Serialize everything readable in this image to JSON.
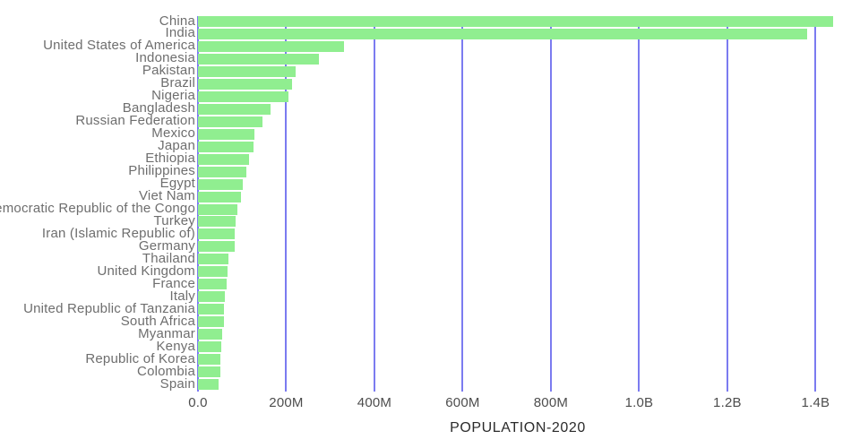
{
  "chart_data": {
    "type": "bar",
    "orientation": "horizontal",
    "title": "POPULATION-2020",
    "categories": [
      "China",
      "India",
      "United States of America",
      "Indonesia",
      "Pakistan",
      "Brazil",
      "Nigeria",
      "Bangladesh",
      "Russian Federation",
      "Mexico",
      "Japan",
      "Ethiopia",
      "Philippines",
      "Egypt",
      "Viet Nam",
      "Democratic Republic of the Congo",
      "Turkey",
      "Iran (Islamic Republic of)",
      "Germany",
      "Thailand",
      "United Kingdom",
      "France",
      "Italy",
      "United Republic of Tanzania",
      "South Africa",
      "Myanmar",
      "Kenya",
      "Republic of Korea",
      "Colombia",
      "Spain"
    ],
    "values_millions": [
      1439,
      1380,
      331,
      273.5,
      220.9,
      212.6,
      206.1,
      164.7,
      145.9,
      128.9,
      126.5,
      115.0,
      109.6,
      102.3,
      97.3,
      89.6,
      84.3,
      84.0,
      83.8,
      69.8,
      67.9,
      65.3,
      60.5,
      59.7,
      59.3,
      54.4,
      53.8,
      51.3,
      50.9,
      46.8
    ],
    "x_ticks": [
      {
        "label": "0.0",
        "value_millions": 0
      },
      {
        "label": "200M",
        "value_millions": 200
      },
      {
        "label": "400M",
        "value_millions": 400
      },
      {
        "label": "600M",
        "value_millions": 600
      },
      {
        "label": "800M",
        "value_millions": 800
      },
      {
        "label": "1.0B",
        "value_millions": 1000
      },
      {
        "label": "1.2B",
        "value_millions": 1200
      },
      {
        "label": "1.4B",
        "value_millions": 1400
      }
    ],
    "xlim_millions": [
      0,
      1450
    ],
    "grid": true,
    "legend": "none",
    "xlabel": "POPULATION-2020",
    "ylabel": "",
    "colors": {
      "bar": "#90ee90",
      "gridline": "#7b7bf0",
      "category_label": "#6e6e6e",
      "tick_label": "#4d4d4d",
      "title": "#2b2b2b"
    }
  }
}
